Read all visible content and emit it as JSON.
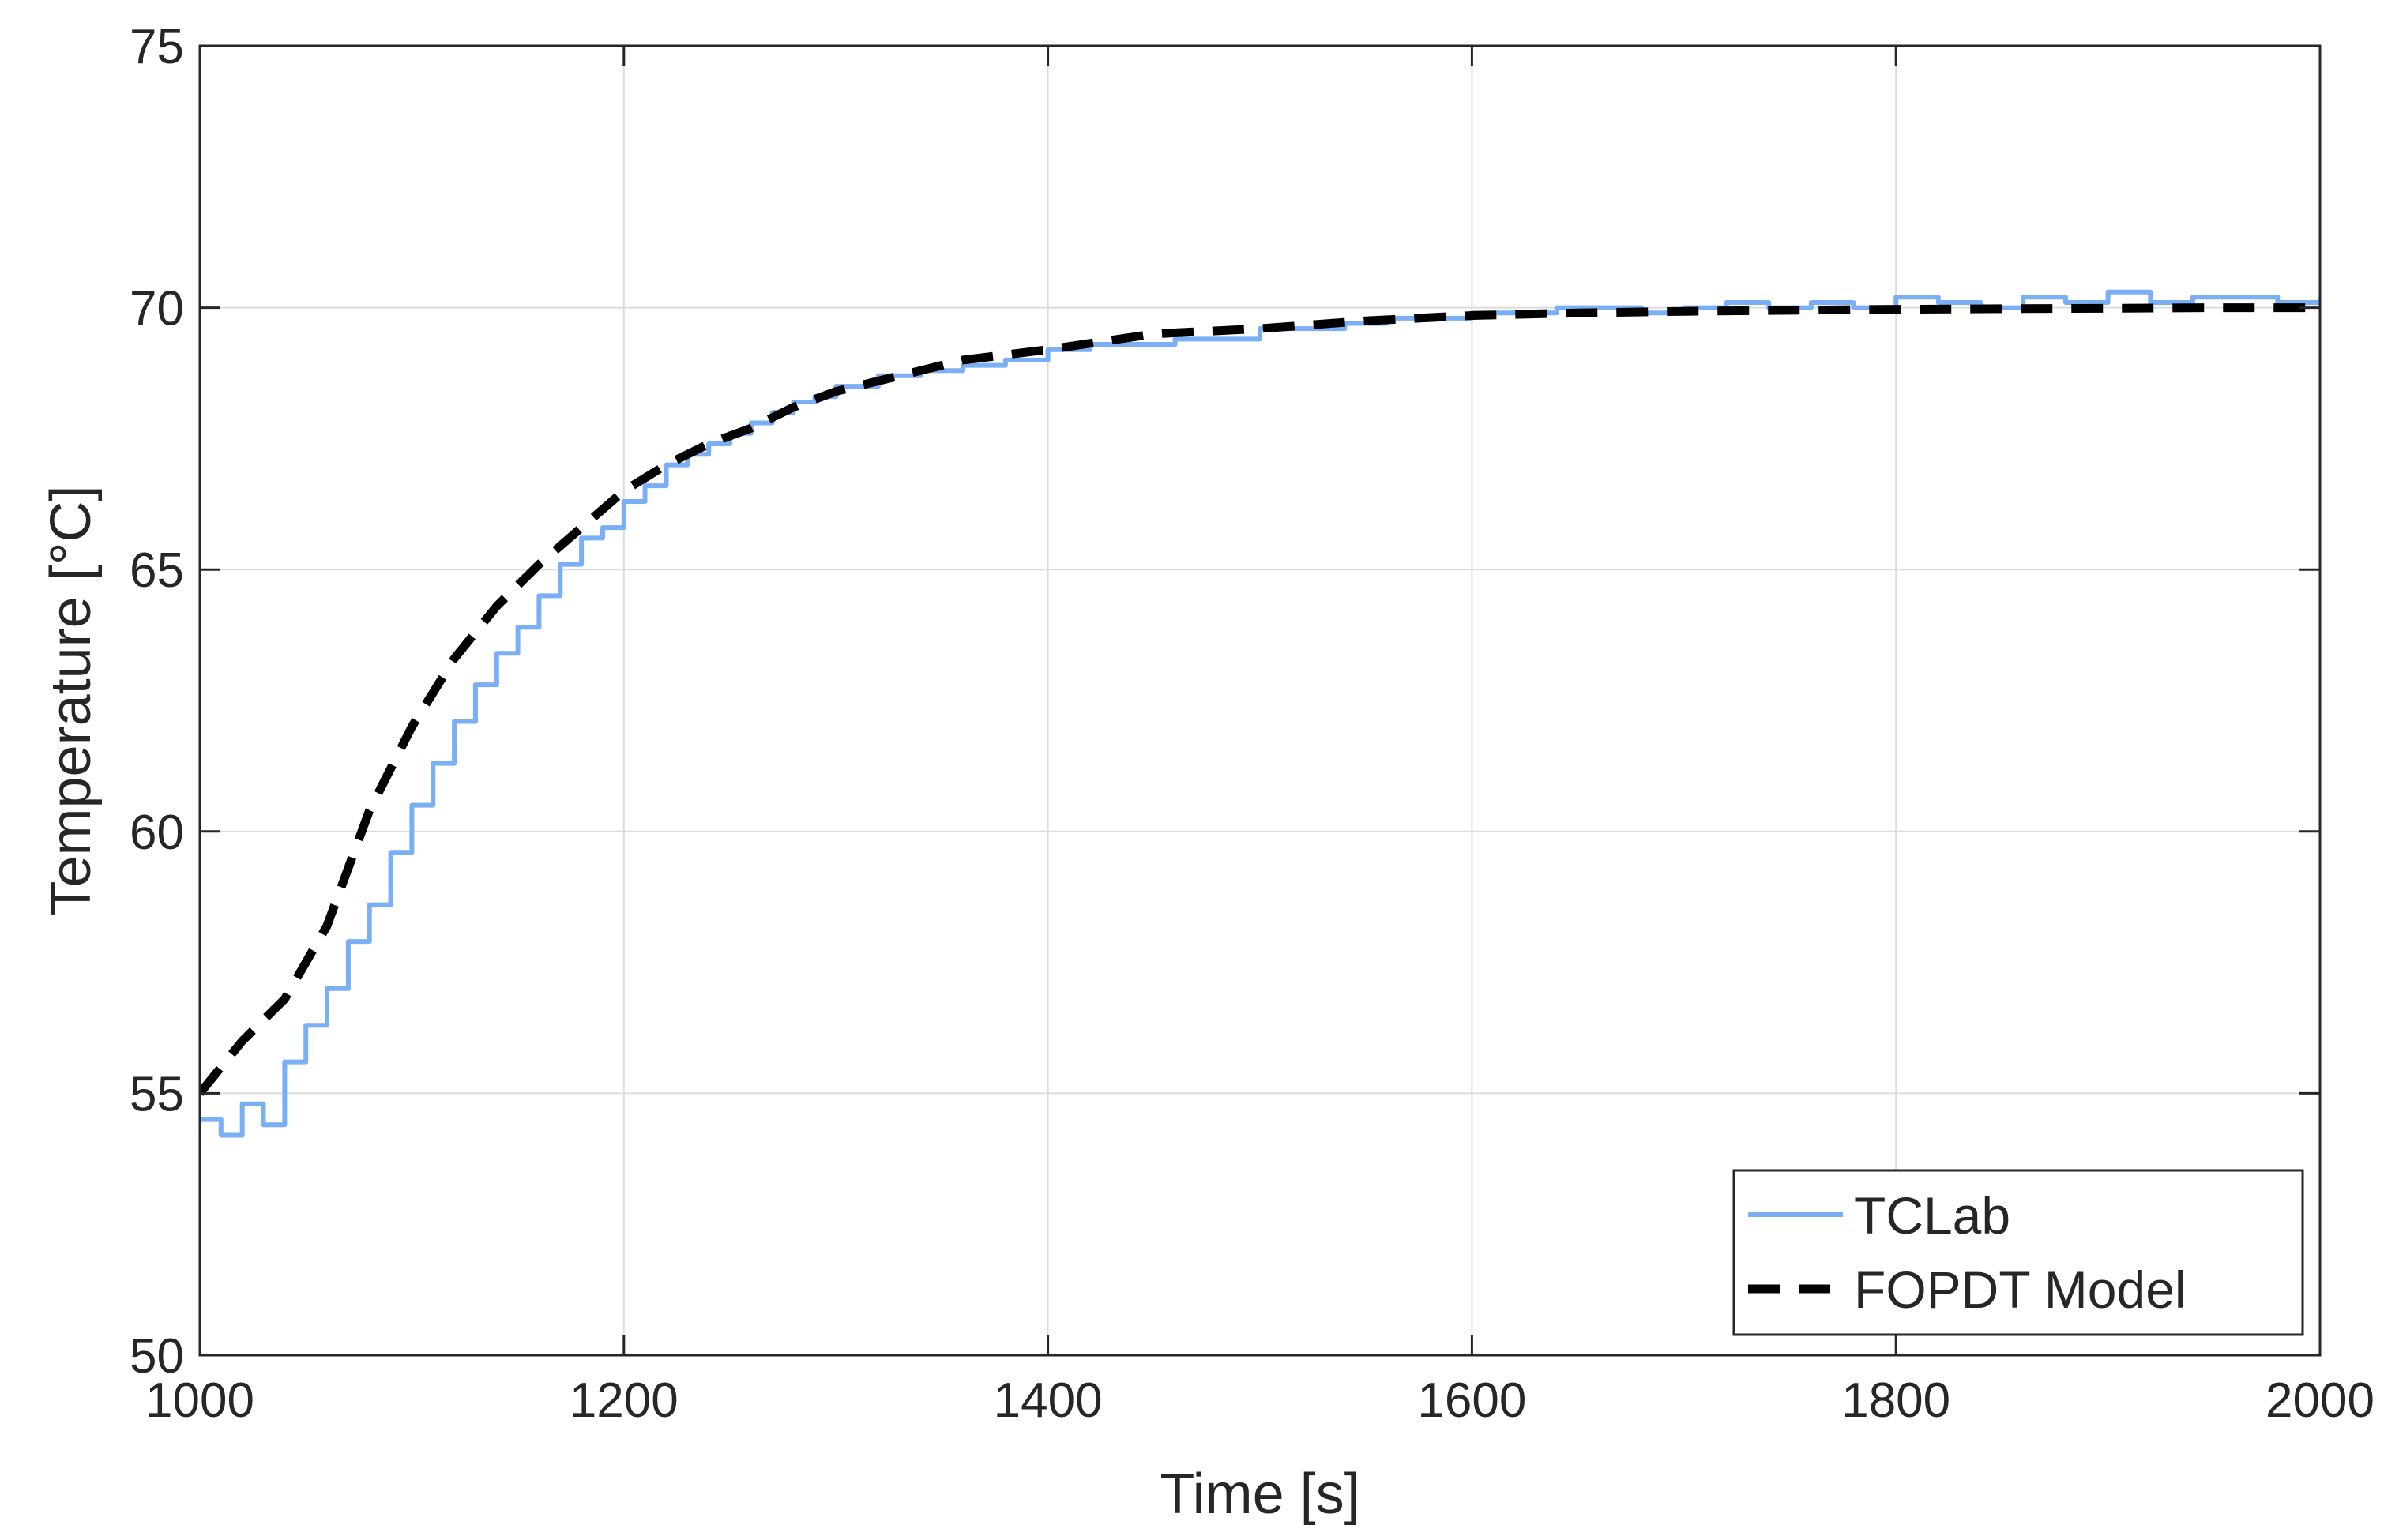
{
  "chart_data": {
    "type": "line",
    "title": "",
    "xlabel": "Time [s]",
    "ylabel": "Temperature [°C]",
    "xlim": [
      1000,
      2000
    ],
    "ylim": [
      50,
      75
    ],
    "xticks": [
      1000,
      1200,
      1400,
      1600,
      1800,
      2000
    ],
    "yticks": [
      50,
      55,
      60,
      65,
      70,
      75
    ],
    "xtick_labels": [
      "1000",
      "1200",
      "1400",
      "1600",
      "1800",
      "2000"
    ],
    "ytick_labels": [
      "50",
      "55",
      "60",
      "65",
      "70",
      "75"
    ],
    "grid": true,
    "legend_position": "bottom-right",
    "series": [
      {
        "name": "TCLab",
        "color": "#7aaef5",
        "style": "solid",
        "x": [
          1000,
          1010,
          1020,
          1030,
          1040,
          1050,
          1060,
          1070,
          1080,
          1090,
          1100,
          1110,
          1120,
          1130,
          1140,
          1150,
          1160,
          1170,
          1180,
          1190,
          1200,
          1210,
          1220,
          1230,
          1240,
          1250,
          1260,
          1270,
          1280,
          1290,
          1300,
          1320,
          1340,
          1360,
          1380,
          1400,
          1420,
          1440,
          1460,
          1480,
          1500,
          1520,
          1540,
          1560,
          1580,
          1600,
          1620,
          1640,
          1660,
          1680,
          1700,
          1720,
          1740,
          1760,
          1780,
          1800,
          1820,
          1840,
          1860,
          1880,
          1900,
          1920,
          1940,
          1960,
          1980,
          2000
        ],
        "y": [
          54.5,
          54.2,
          54.8,
          54.4,
          55.6,
          56.3,
          57.0,
          57.9,
          58.6,
          59.6,
          60.5,
          61.3,
          62.1,
          62.8,
          63.4,
          63.9,
          64.5,
          65.1,
          65.6,
          65.8,
          66.3,
          66.6,
          67.0,
          67.2,
          67.4,
          67.6,
          67.8,
          68.0,
          68.2,
          68.3,
          68.5,
          68.7,
          68.8,
          68.9,
          69.0,
          69.2,
          69.3,
          69.3,
          69.4,
          69.4,
          69.6,
          69.6,
          69.7,
          69.8,
          69.8,
          69.9,
          69.9,
          70.0,
          70.0,
          69.9,
          70.0,
          70.1,
          70.0,
          70.1,
          70.0,
          70.2,
          70.1,
          70.0,
          70.2,
          70.1,
          70.3,
          70.1,
          70.2,
          70.2,
          70.1,
          70.2
        ]
      },
      {
        "name": "FOPDT Model",
        "color": "#000000",
        "style": "dashed",
        "x": [
          1000,
          1020,
          1040,
          1060,
          1080,
          1100,
          1120,
          1140,
          1160,
          1180,
          1200,
          1220,
          1240,
          1260,
          1280,
          1300,
          1320,
          1340,
          1360,
          1380,
          1400,
          1450,
          1500,
          1550,
          1600,
          1650,
          1700,
          1750,
          1800,
          1850,
          1900,
          1950,
          2000
        ],
        "y": [
          55.0,
          56.0,
          56.8,
          58.2,
          60.4,
          62.0,
          63.3,
          64.3,
          65.1,
          65.8,
          66.5,
          67.0,
          67.4,
          67.7,
          68.1,
          68.4,
          68.6,
          68.8,
          69.0,
          69.1,
          69.2,
          69.5,
          69.6,
          69.75,
          69.85,
          69.9,
          69.93,
          69.95,
          69.97,
          69.98,
          69.99,
          70.0,
          70.0
        ]
      }
    ]
  }
}
